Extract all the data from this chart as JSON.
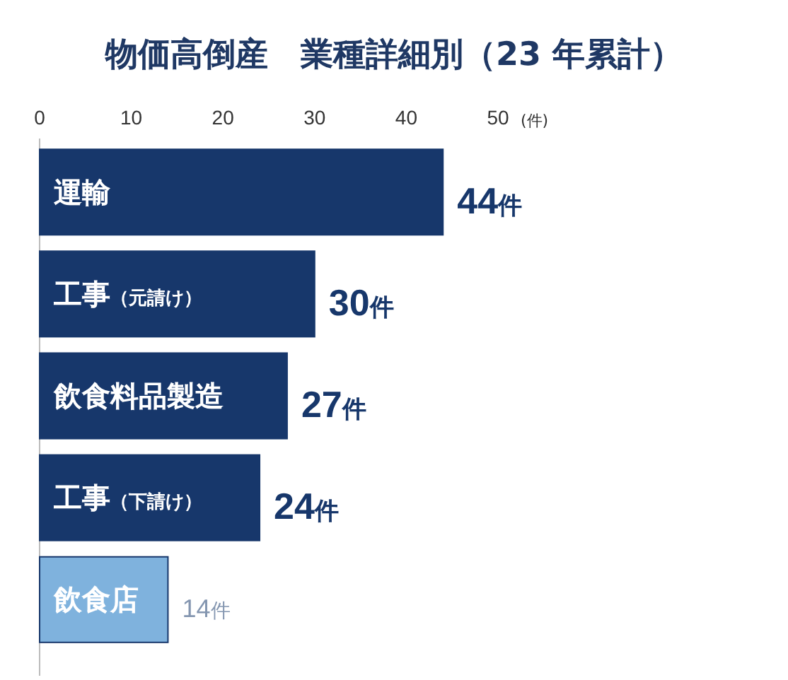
{
  "chart_data": {
    "type": "bar",
    "orientation": "horizontal",
    "title": "物価高倒産　業種詳細別（23 年累計）",
    "xlabel": "(件)",
    "categories": [
      "運輸",
      "工事（元請け）",
      "飲食料品製造",
      "工事（下請け）",
      "飲食店"
    ],
    "values": [
      44,
      30,
      27,
      24,
      14
    ],
    "colors": [
      "#17376b",
      "#17376b",
      "#17376b",
      "#17376b",
      "#7fb2dd"
    ],
    "value_labels": [
      "44件",
      "30件",
      "27件",
      "24件",
      "14件"
    ],
    "xlim": [
      0,
      50
    ],
    "xticks": [
      0,
      10,
      20,
      30,
      40,
      50
    ],
    "grid": false
  }
}
